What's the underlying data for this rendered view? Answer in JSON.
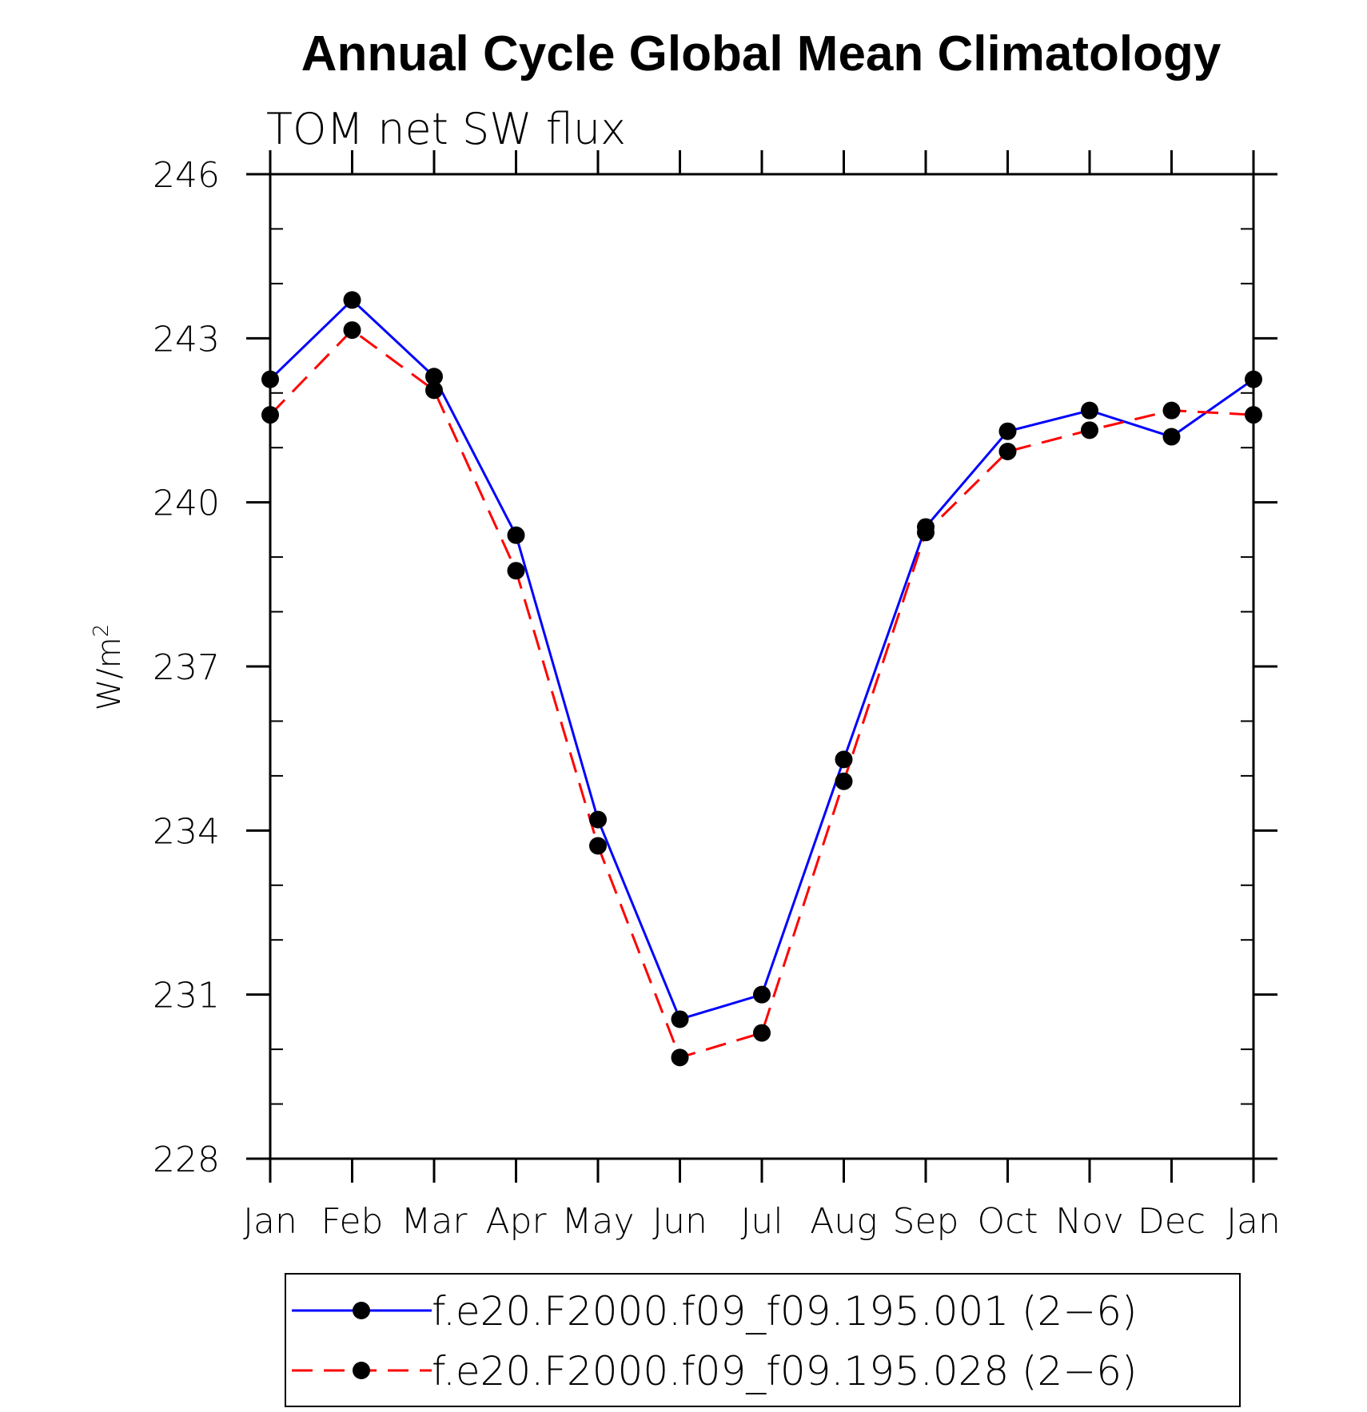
{
  "chart_data": {
    "type": "line",
    "title": "Annual Cycle Global Mean Climatology",
    "subtitle": "TOM net SW flux",
    "xlabel": "",
    "ylabel": "W/m",
    "ylabel_superscript": "2",
    "categories": [
      "Jan",
      "Feb",
      "Mar",
      "Apr",
      "May",
      "Jun",
      "Jul",
      "Aug",
      "Sep",
      "Oct",
      "Nov",
      "Dec",
      "Jan"
    ],
    "ylim": [
      228,
      246
    ],
    "yticks": [
      228,
      231,
      234,
      237,
      240,
      243,
      246
    ],
    "yticks_labels": [
      "228",
      "231",
      "234",
      "237",
      "240",
      "243",
      "246"
    ],
    "grid": false,
    "legend_position": "bottom",
    "series": [
      {
        "name": "f.e20.F2000.f09_f09.195.001 (2−6)",
        "color": "#0000ff",
        "line_style": "solid",
        "marker": "filled-circle",
        "values": [
          242.25,
          243.7,
          242.3,
          239.4,
          234.2,
          230.55,
          231.0,
          235.3,
          239.55,
          241.3,
          241.68,
          241.2,
          242.25
        ]
      },
      {
        "name": "f.e20.F2000.f09_f09.195.028 (2−6)",
        "color": "#ff0000",
        "line_style": "dashed",
        "marker": "filled-circle",
        "values": [
          241.6,
          243.15,
          242.05,
          238.75,
          233.72,
          229.85,
          230.3,
          234.9,
          239.45,
          240.93,
          241.32,
          241.68,
          241.6
        ]
      }
    ]
  }
}
